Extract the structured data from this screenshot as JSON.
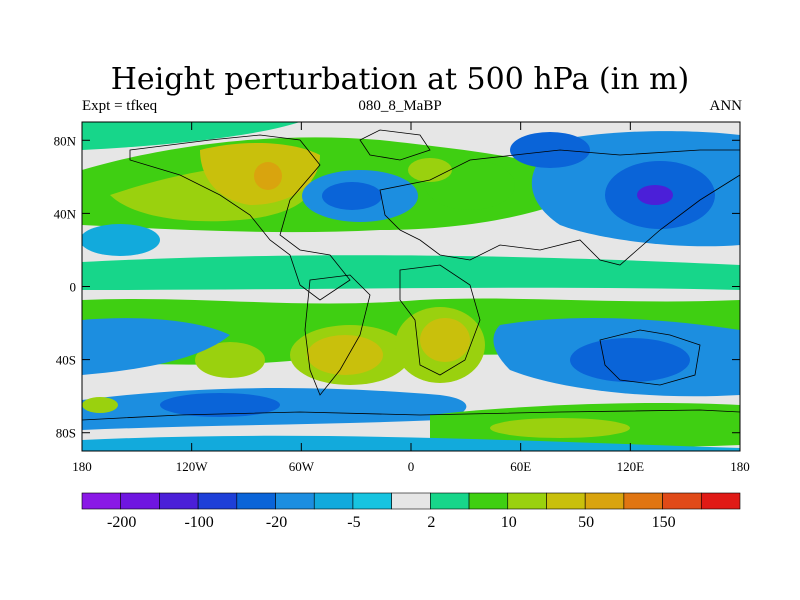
{
  "chart_data": {
    "type": "heatmap",
    "title": "Height perturbation at 500 hPa (in m)",
    "subtitle_left": "Expt = tfkeq",
    "subtitle_center": "080_8_MaBP",
    "subtitle_right": "ANN",
    "x_ticks": [
      "180",
      "120W",
      "60W",
      "0",
      "60E",
      "120E",
      "180"
    ],
    "y_ticks": [
      "80N",
      "40N",
      "0",
      "40S",
      "80S"
    ],
    "xlim": [
      -180,
      180
    ],
    "ylim": [
      -90,
      90
    ],
    "grid": false,
    "colorbar": {
      "tick_labels": [
        "-200",
        "-100",
        "-20",
        "-5",
        "2",
        "10",
        "50",
        "150"
      ],
      "colors": [
        "#8a18e6",
        "#6f16e0",
        "#4b1fd8",
        "#1e3fd8",
        "#0a64d8",
        "#1c8ee0",
        "#12aadc",
        "#17c4e0",
        "#e6e6e6",
        "#17d68a",
        "#3fcf12",
        "#9ad10e",
        "#c9c00c",
        "#d9a40e",
        "#e07512",
        "#e04a18",
        "#e01a16"
      ]
    },
    "field_description": "positive anomalies (green-yellow) over subtropics/continents, negative anomalies (blue) over northern mid-latitudes and southern oceans"
  }
}
